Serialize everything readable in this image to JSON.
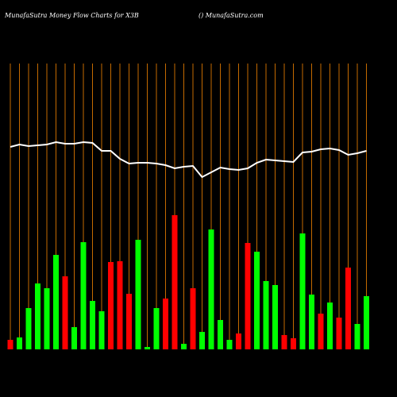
{
  "chart_data": {
    "type": "bar",
    "title": "MunafaSutra  Money Flow  Charts for X3B",
    "subtitle": "() MunafaSutra.com",
    "categories": [
      null,
      null,
      null,
      null,
      null,
      null,
      null,
      null,
      null,
      null,
      null,
      null,
      null,
      null,
      null,
      null,
      null,
      null,
      null,
      null,
      null,
      null,
      null,
      null,
      null,
      null,
      null,
      null,
      null,
      null,
      null,
      null,
      null,
      null,
      null,
      null,
      null,
      null,
      null,
      null
    ],
    "series": [
      {
        "type": "bar",
        "values": [
          12,
          15,
          52,
          83,
          77,
          119,
          92,
          28,
          135,
          61,
          48,
          110,
          111,
          70,
          138,
          3,
          52,
          64,
          169,
          7,
          77,
          22,
          151,
          37,
          12,
          20,
          134,
          123,
          86,
          81,
          18,
          14,
          146,
          69,
          45,
          59,
          40,
          103,
          32,
          67
        ],
        "colors": [
          "#ff0000",
          "#00ff00",
          "#00ff00",
          "#00ff00",
          "#00ff00",
          "#00ff00",
          "#ff0000",
          "#00ff00",
          "#00ff00",
          "#00ff00",
          "#00ff00",
          "#ff0000",
          "#ff0000",
          "#ff0000",
          "#00ff00",
          "#00ff00",
          "#00ff00",
          "#ff0000",
          "#ff0000",
          "#00ff00",
          "#ff0000",
          "#00ff00",
          "#00ff00",
          "#00ff00",
          "#00ff00",
          "#ff0000",
          "#ff0000",
          "#00ff00",
          "#00ff00",
          "#00ff00",
          "#ff0000",
          "#ff0000",
          "#00ff00",
          "#00ff00",
          "#ff0000",
          "#00ff00",
          "#ff0000",
          "#ff0000",
          "#00ff00",
          "#00ff00"
        ]
      },
      {
        "type": "line",
        "color": "#ffffff",
        "values": [
          255,
          258,
          256,
          257,
          258,
          261,
          259,
          259,
          261,
          260,
          250,
          250,
          240,
          234,
          235,
          235,
          234,
          232,
          228,
          230,
          231,
          217,
          223,
          229,
          227,
          226,
          228,
          235,
          239,
          238,
          237,
          236,
          248,
          249,
          252,
          253,
          251,
          245,
          247,
          250
        ]
      }
    ],
    "ylim": [
      0,
      360
    ],
    "grid_color": "#c46a00"
  }
}
